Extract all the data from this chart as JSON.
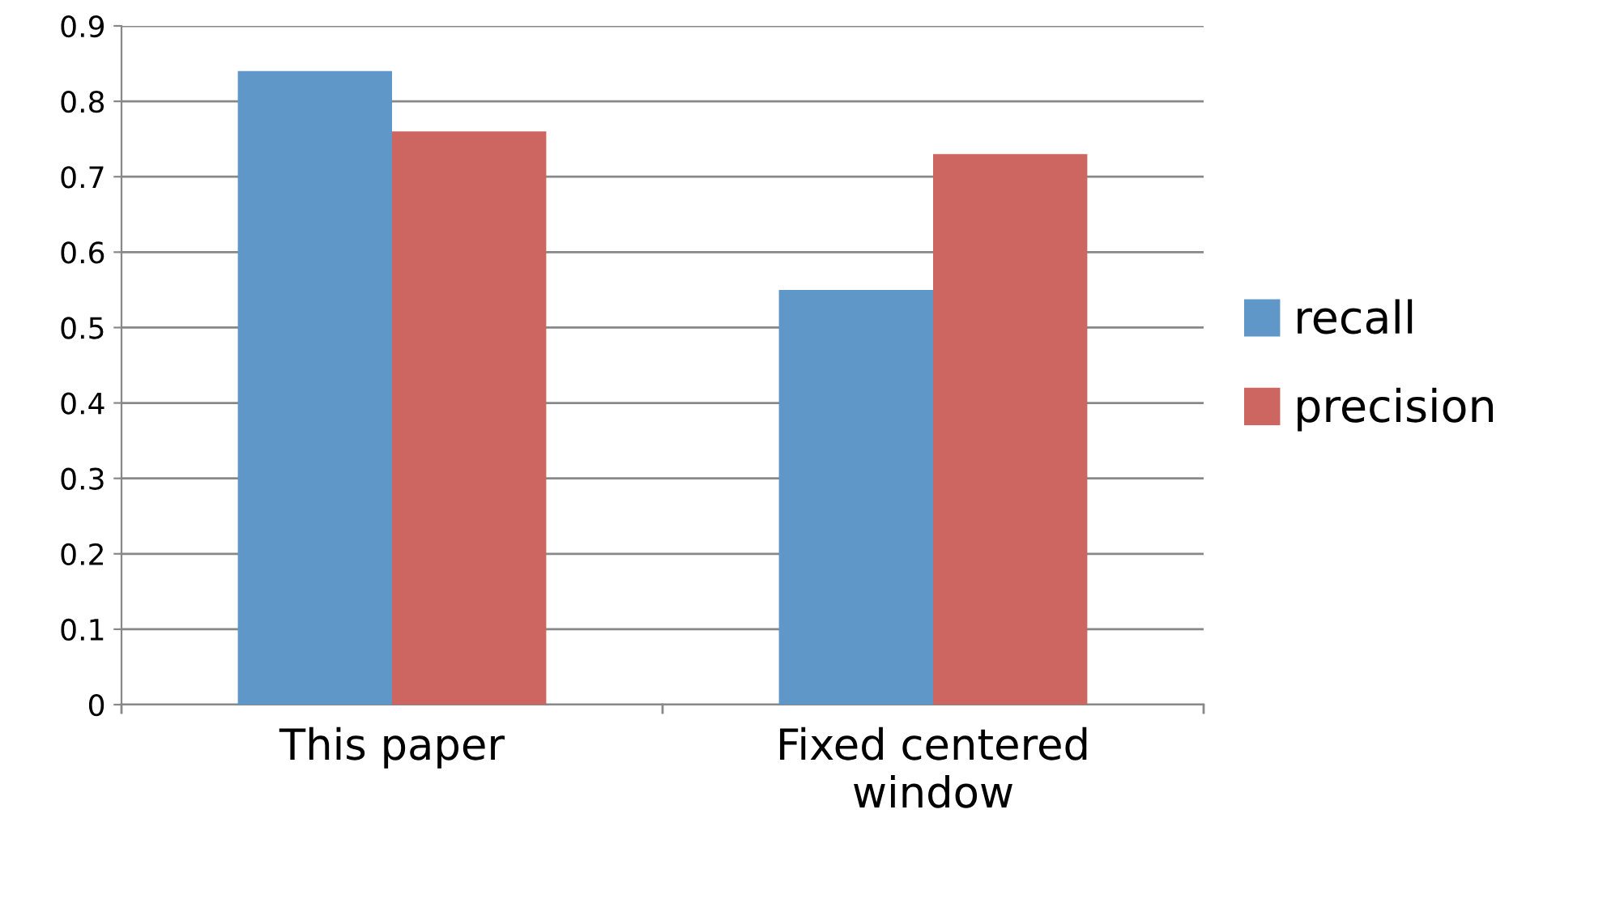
{
  "chart_data": {
    "type": "bar",
    "categories": [
      "This paper",
      "Fixed centered\nwindow"
    ],
    "series": [
      {
        "name": "recall",
        "color": "#5f97c9",
        "values": [
          0.84,
          0.55
        ]
      },
      {
        "name": "precision",
        "color": "#cd6660",
        "values": [
          0.76,
          0.73
        ]
      }
    ],
    "ylim": [
      0,
      0.9
    ],
    "yticks": [
      0,
      0.1,
      0.2,
      0.3,
      0.4,
      0.5,
      0.6,
      0.7,
      0.8,
      0.9
    ],
    "grid": "y",
    "legend": "right"
  }
}
